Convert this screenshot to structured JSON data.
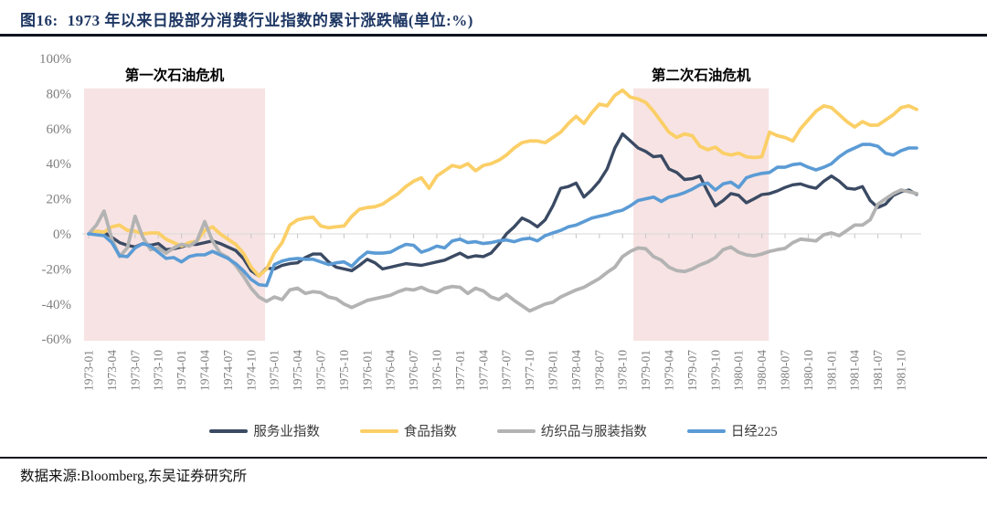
{
  "title": {
    "prefix": "图16:",
    "text": "1973 年以来日股部分消费行业指数的累计涨跌幅(单位:%)"
  },
  "footer": {
    "text": "数据来源:Bloomberg,东吴证券研究所"
  },
  "colors": {
    "title_navy": "#1F3864",
    "band_pink": "#F7E3E3",
    "zero_line": "#D8D8D8",
    "tick": "#C6C6C6",
    "axis_text": "#808080",
    "annotation_text": "#000000",
    "divider": "#10131F"
  },
  "chart_data": {
    "type": "line",
    "title": "1973 年以来日股部分消费行业指数的累计涨跌幅(单位:%)",
    "x_start": "1973-01",
    "x_step_months": 1,
    "x_labels": [
      "1973-01",
      "1973-04",
      "1973-07",
      "1973-10",
      "1974-01",
      "1974-04",
      "1974-07",
      "1974-10",
      "1975-01",
      "1975-04",
      "1975-07",
      "1975-10",
      "1976-01",
      "1976-04",
      "1976-07",
      "1976-10",
      "1977-01",
      "1977-04",
      "1977-07",
      "1977-10",
      "1978-01",
      "1978-04",
      "1978-07",
      "1978-10",
      "1979-01",
      "1979-04",
      "1979-07",
      "1979-10",
      "1980-01",
      "1980-04",
      "1980-07",
      "1980-10",
      "1981-01",
      "1981-04",
      "1981-07",
      "1981-10"
    ],
    "label_every_months": 3,
    "ylim": [
      -60,
      100
    ],
    "y_ticks": [
      100,
      80,
      60,
      40,
      20,
      0,
      -20,
      -40,
      -60
    ],
    "y_tick_suffix": "%",
    "grid": "zero-line-only",
    "legend_position": "bottom",
    "bands": [
      {
        "label": "第一次石油危机",
        "from_month": -0.6,
        "to_month": 22.8,
        "top_value": 83,
        "bottom_value": -61
      },
      {
        "label": "第二次石油危机",
        "from_month": 70.4,
        "to_month": 87.9,
        "top_value": 83,
        "bottom_value": -61
      }
    ],
    "series": [
      {
        "id": "service-index",
        "name": "服务业指数",
        "color": "#3B4A63",
        "width": 3.4,
        "values": [
          0,
          1.5,
          1,
          -2,
          -5,
          -6.5,
          -7.5,
          -5.5,
          -6.5,
          -5.5,
          -9,
          -8.5,
          -7.5,
          -6,
          -6,
          -5,
          -4,
          -5.5,
          -7.5,
          -9.5,
          -14,
          -21,
          -24,
          -19.5,
          -20,
          -18,
          -17,
          -16.5,
          -13.5,
          -11.5,
          -11.5,
          -16,
          -19,
          -20,
          -21,
          -18,
          -14.5,
          -16.5,
          -20,
          -19,
          -18,
          -17,
          -17.5,
          -18,
          -17,
          -16,
          -15,
          -13,
          -11,
          -13.5,
          -12.5,
          -13,
          -11,
          -6,
          0,
          4,
          9,
          7,
          4,
          8,
          16,
          26,
          27,
          29,
          21,
          25,
          30,
          37,
          49,
          57,
          53,
          49,
          47,
          44,
          44.5,
          37,
          35,
          31,
          31.5,
          33,
          24,
          16,
          19,
          23,
          22,
          17.7,
          20,
          22.4,
          23,
          24.5,
          26.5,
          28,
          28.5,
          27,
          26,
          30,
          33,
          30,
          26,
          25.5,
          27,
          19,
          15,
          17,
          22,
          24,
          25,
          22.5
        ]
      },
      {
        "id": "food-index",
        "name": "食品指数",
        "color": "#FBCF67",
        "width": 3.8,
        "values": [
          0,
          1.5,
          1,
          4,
          5,
          2,
          1.5,
          0,
          0.5,
          0.5,
          -3,
          -5,
          -7,
          -5,
          -4,
          2,
          4,
          0,
          -3,
          -6,
          -11,
          -19,
          -24,
          -20,
          -11,
          -5,
          5,
          8,
          9,
          9.5,
          4.5,
          3.5,
          4,
          4.5,
          10,
          14,
          15,
          15.5,
          17,
          20,
          23,
          27,
          30,
          32,
          26,
          33,
          36,
          39,
          38,
          40,
          36,
          39,
          40,
          42,
          45,
          49,
          52,
          53,
          53,
          52,
          55,
          58,
          63,
          67,
          63,
          69,
          74,
          73,
          79,
          82,
          78,
          77,
          75,
          70,
          64,
          58,
          55,
          57,
          56,
          50,
          48,
          49.5,
          46,
          45,
          46,
          44,
          43.5,
          44,
          58,
          56,
          55,
          53,
          60,
          65,
          70,
          73,
          72,
          68,
          64,
          61,
          64,
          62,
          62,
          65,
          68,
          72,
          73,
          71
        ]
      },
      {
        "id": "textile-apparel-index",
        "name": "纺织品与服装指数",
        "color": "#B3B3B3",
        "width": 3.8,
        "values": [
          0,
          5,
          13,
          -3,
          -13,
          -8,
          10,
          -2,
          -9,
          -8,
          -11,
          -8,
          -6,
          -7,
          -4,
          7,
          -4,
          -11,
          -13.5,
          -18,
          -24,
          -31,
          -36,
          -38.5,
          -36,
          -37.5,
          -32,
          -31,
          -34,
          -33,
          -33.5,
          -36,
          -37,
          -40,
          -42,
          -40,
          -38,
          -37,
          -36,
          -35,
          -33,
          -31.5,
          -32,
          -30.5,
          -32.5,
          -33.5,
          -31,
          -30,
          -30.5,
          -34,
          -31,
          -32.5,
          -36,
          -37.5,
          -34.5,
          -38,
          -41,
          -44,
          -42,
          -40,
          -39,
          -36,
          -34,
          -32,
          -30.5,
          -28,
          -25.5,
          -22,
          -19,
          -13,
          -10,
          -8,
          -8.5,
          -13,
          -15,
          -19,
          -21,
          -21.5,
          -20,
          -17.7,
          -16,
          -13.5,
          -9,
          -7.5,
          -10.5,
          -12,
          -12.5,
          -11.5,
          -10,
          -9,
          -8.3,
          -5,
          -3,
          -3.5,
          -4,
          -0.5,
          0.5,
          -1,
          2,
          5,
          5,
          8,
          17,
          20,
          23,
          25,
          24,
          23
        ]
      },
      {
        "id": "nikkei-225",
        "name": "日经225",
        "color": "#5B9BD5",
        "width": 3.6,
        "values": [
          0,
          -0.5,
          -1,
          -5,
          -12.5,
          -13,
          -8,
          -5.5,
          -7,
          -10.5,
          -14,
          -13.5,
          -16,
          -13,
          -12,
          -12,
          -10,
          -12,
          -14,
          -17,
          -21,
          -26,
          -29,
          -29.5,
          -17.5,
          -15.5,
          -14.5,
          -14,
          -14.5,
          -14.5,
          -16,
          -17.5,
          -16.5,
          -16,
          -18.5,
          -14,
          -10.5,
          -11,
          -11,
          -10.5,
          -8,
          -6,
          -6.5,
          -10.5,
          -9,
          -7,
          -8,
          -4,
          -3,
          -5,
          -4.5,
          -5.5,
          -5,
          -4,
          -3.5,
          -4.5,
          -3,
          -2.5,
          -4,
          -1,
          0.5,
          2,
          4,
          5,
          7,
          9,
          10,
          11,
          12.5,
          13.5,
          16,
          19,
          20,
          21,
          18.5,
          21,
          22,
          23.5,
          25.5,
          28,
          29,
          25,
          28.5,
          29.5,
          26.5,
          32,
          33.5,
          34.5,
          35,
          38,
          38,
          39.5,
          40,
          38,
          36.5,
          38,
          40,
          44,
          47,
          49,
          51,
          51,
          50,
          46,
          45,
          47.5,
          49,
          49
        ]
      }
    ]
  }
}
